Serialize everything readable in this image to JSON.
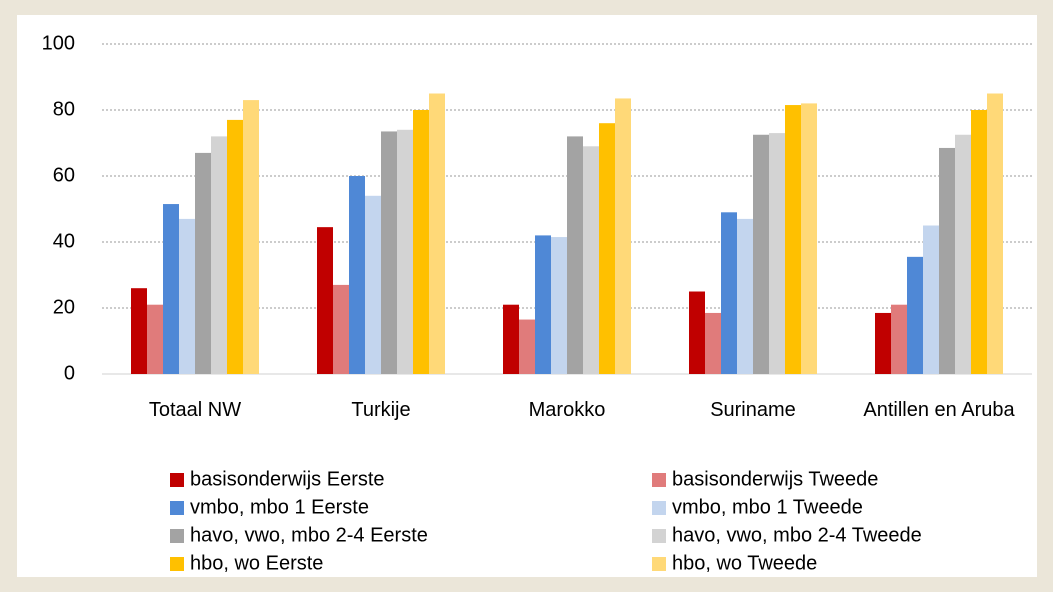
{
  "chart_data": {
    "type": "bar",
    "categories": [
      "Totaal NW",
      "Turkije",
      "Marokko",
      "Suriname",
      "Antillen en Aruba"
    ],
    "series": [
      {
        "name": "basisonderwijs Eerste",
        "color": "#c00000",
        "values": [
          26,
          44.5,
          21,
          25,
          18.5
        ]
      },
      {
        "name": "basisonderwijs Tweede",
        "color": "#e07b7b",
        "values": [
          21,
          27,
          16.5,
          18.5,
          21
        ]
      },
      {
        "name": "vmbo, mbo 1 Eerste",
        "color": "#4f88d6",
        "values": [
          51.5,
          60,
          42,
          49,
          35.5
        ]
      },
      {
        "name": "vmbo, mbo 1 Tweede",
        "color": "#c3d5ee",
        "values": [
          47,
          54,
          41.5,
          47,
          45
        ]
      },
      {
        "name": "havo, vwo, mbo 2-4 Eerste",
        "color": "#a3a3a3",
        "values": [
          67,
          73.5,
          72,
          72.5,
          68.5
        ]
      },
      {
        "name": "havo, vwo, mbo 2-4 Tweede",
        "color": "#d3d3d3",
        "values": [
          72,
          74,
          69,
          73,
          72.5
        ]
      },
      {
        "name": "hbo, wo Eerste",
        "color": "#ffc000",
        "values": [
          77,
          80,
          76,
          81.5,
          80
        ]
      },
      {
        "name": "hbo, wo Tweede",
        "color": "#ffd978",
        "values": [
          83,
          85,
          83.5,
          82,
          85
        ]
      }
    ],
    "ylim": [
      0,
      100
    ],
    "yticks": [
      0,
      20,
      40,
      60,
      80,
      100
    ],
    "grid": true,
    "legend": "bottom"
  }
}
